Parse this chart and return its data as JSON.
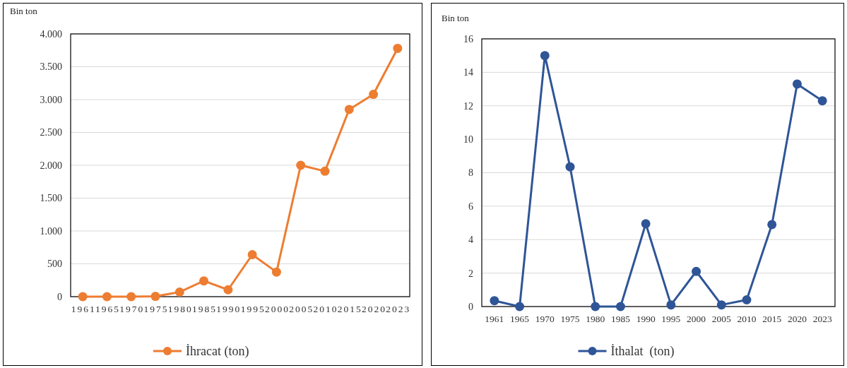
{
  "chart_data": [
    {
      "type": "line",
      "ylabel": "Bin ton",
      "categories": [
        "1961",
        "1965",
        "1970",
        "1975",
        "1980",
        "1985",
        "1990",
        "1995",
        "2000",
        "2005",
        "2010",
        "2015",
        "2020",
        "2023"
      ],
      "series": [
        {
          "name": "İhracat (ton)",
          "color": "#ed7d31",
          "values": [
            0,
            0,
            0,
            5,
            70,
            240,
            105,
            640,
            375,
            2000,
            1910,
            2850,
            3080,
            3780
          ]
        }
      ],
      "ylim": [
        0,
        4000
      ],
      "yticks": [
        0,
        {
          "value": 500,
          "label": "500"
        },
        {
          "value": 1000,
          "label": "1.000"
        },
        {
          "value": 1500,
          "label": "1.500"
        },
        {
          "value": 2000,
          "label": "2.000"
        },
        {
          "value": 2500,
          "label": "2.500"
        },
        {
          "value": 3000,
          "label": "3.000"
        },
        {
          "value": 3500,
          "label": "3.500"
        },
        {
          "value": 4000,
          "label": "4.000"
        }
      ],
      "grid": "y",
      "legend": "bottom",
      "marker": "circle"
    },
    {
      "type": "line",
      "ylabel": "Bin ton",
      "categories": [
        "1961",
        "1965",
        "1970",
        "1975",
        "1980",
        "1985",
        "1990",
        "1995",
        "2000",
        "2005",
        "2010",
        "2015",
        "2020",
        "2023"
      ],
      "series": [
        {
          "name": "İthalat  (ton)",
          "color": "#2f5597",
          "values": [
            0.35,
            0,
            15,
            8.35,
            0,
            0,
            4.95,
            0.1,
            2.1,
            0.1,
            0.4,
            4.9,
            13.3,
            12.3
          ]
        }
      ],
      "ylim": [
        0,
        16
      ],
      "yticks": [
        0,
        2,
        4,
        6,
        8,
        10,
        12,
        14,
        16
      ],
      "grid": "y",
      "legend": "bottom",
      "marker": "circle"
    }
  ]
}
